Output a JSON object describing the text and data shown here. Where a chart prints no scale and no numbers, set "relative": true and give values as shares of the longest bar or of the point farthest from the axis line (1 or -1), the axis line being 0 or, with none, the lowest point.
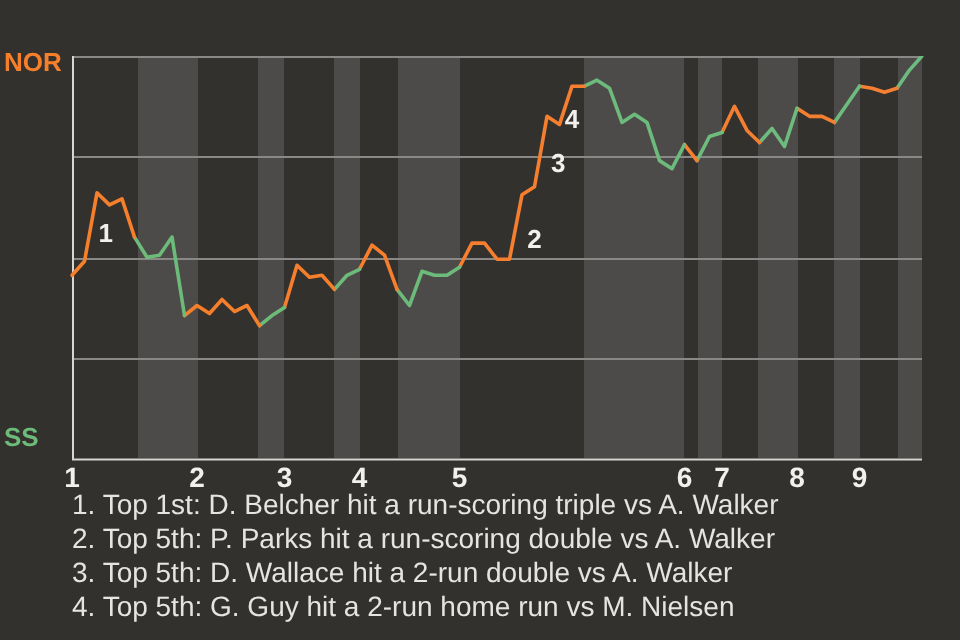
{
  "chart_data": {
    "type": "line",
    "relative": true,
    "legend": "left",
    "marker": "none",
    "categories": [
      "1",
      null,
      null,
      null,
      null,
      null,
      null,
      null,
      null,
      null,
      "2",
      null,
      null,
      null,
      null,
      null,
      null,
      "3",
      null,
      null,
      null,
      null,
      null,
      "4",
      null,
      null,
      null,
      null,
      null,
      null,
      null,
      "5",
      null,
      null,
      null,
      null,
      null,
      null,
      null,
      null,
      null,
      null,
      null,
      null,
      null,
      null,
      null,
      null,
      null,
      "6",
      null,
      null,
      "7",
      null,
      null,
      null,
      null,
      null,
      "8",
      null,
      null,
      null,
      null,
      "9",
      null,
      null,
      null,
      null,
      null
    ],
    "series": [
      {
        "name": "NOR",
        "color": "#f57f2a",
        "values": [
          0.455,
          0.49,
          0.66,
          0.63,
          0.645,
          0.55,
          null,
          null,
          null,
          null,
          null,
          null,
          null,
          null,
          null,
          null,
          null,
          null,
          null,
          null,
          null,
          null,
          null,
          null,
          null,
          null,
          null,
          null,
          null,
          null,
          null,
          null,
          null,
          null,
          null,
          null,
          null,
          null,
          null,
          null,
          null,
          null,
          null,
          null,
          null,
          null,
          null,
          null,
          null,
          null,
          null,
          null,
          null,
          null,
          null,
          null,
          null,
          null,
          null,
          null,
          null,
          null,
          null,
          null,
          null,
          null,
          null,
          null,
          null
        ]
      },
      {
        "name": "SS",
        "color": "#6dbb78",
        "values": [
          null,
          null,
          null,
          null,
          null,
          0.55,
          0.5,
          0.505,
          0.55,
          0.355,
          null,
          null,
          null,
          null,
          null,
          null,
          null,
          null,
          null,
          null,
          null,
          null,
          null,
          null,
          null,
          null,
          null,
          null,
          null,
          null,
          null,
          null,
          null,
          null,
          null,
          null,
          null,
          null,
          null,
          null,
          null,
          null,
          null,
          null,
          null,
          null,
          null,
          null,
          null,
          null,
          null,
          null,
          null,
          null,
          null,
          null,
          null,
          null,
          null,
          null,
          null,
          null,
          null,
          null,
          null,
          null,
          null,
          null,
          null
        ]
      },
      {
        "color": "#f57f2b",
        "values": [
          null,
          null,
          null,
          null,
          null,
          null,
          null,
          null,
          null,
          0.355,
          0.38,
          0.36,
          0.395,
          0.365,
          0.38,
          0.33,
          null,
          null,
          null,
          null,
          null,
          null,
          null,
          null,
          null,
          null,
          null,
          null,
          null,
          null,
          null,
          null,
          null,
          null,
          null,
          null,
          null,
          null,
          null,
          null,
          null,
          null,
          null,
          null,
          null,
          null,
          null,
          null,
          null,
          null,
          null,
          null,
          null,
          null,
          null,
          null,
          null,
          null,
          null,
          null,
          null,
          null,
          null,
          null,
          null,
          null,
          null,
          null,
          null
        ]
      },
      {
        "color": "#6dbb79",
        "values": [
          null,
          null,
          null,
          null,
          null,
          null,
          null,
          null,
          null,
          null,
          null,
          null,
          null,
          null,
          null,
          0.33,
          0.355,
          0.375,
          null,
          null,
          null,
          null,
          null,
          null,
          null,
          null,
          null,
          null,
          null,
          null,
          null,
          null,
          null,
          null,
          null,
          null,
          null,
          null,
          null,
          null,
          null,
          null,
          null,
          null,
          null,
          null,
          null,
          null,
          null,
          null,
          null,
          null,
          null,
          null,
          null,
          null,
          null,
          null,
          null,
          null,
          null,
          null,
          null,
          null,
          null,
          null,
          null,
          null,
          null
        ]
      },
      {
        "color": "#f57f2c",
        "values": [
          null,
          null,
          null,
          null,
          null,
          null,
          null,
          null,
          null,
          null,
          null,
          null,
          null,
          null,
          null,
          null,
          null,
          0.375,
          0.48,
          0.45,
          0.455,
          0.42,
          null,
          null,
          null,
          null,
          null,
          null,
          null,
          null,
          null,
          null,
          null,
          null,
          null,
          null,
          null,
          null,
          null,
          null,
          null,
          null,
          null,
          null,
          null,
          null,
          null,
          null,
          null,
          null,
          null,
          null,
          null,
          null,
          null,
          null,
          null,
          null,
          null,
          null,
          null,
          null,
          null,
          null,
          null,
          null,
          null,
          null,
          null
        ]
      },
      {
        "color": "#6dbb7a",
        "values": [
          null,
          null,
          null,
          null,
          null,
          null,
          null,
          null,
          null,
          null,
          null,
          null,
          null,
          null,
          null,
          null,
          null,
          null,
          null,
          null,
          null,
          0.42,
          0.455,
          0.47,
          null,
          null,
          null,
          null,
          null,
          null,
          null,
          null,
          null,
          null,
          null,
          null,
          null,
          null,
          null,
          null,
          null,
          null,
          null,
          null,
          null,
          null,
          null,
          null,
          null,
          null,
          null,
          null,
          null,
          null,
          null,
          null,
          null,
          null,
          null,
          null,
          null,
          null,
          null,
          null,
          null,
          null,
          null,
          null,
          null
        ]
      },
      {
        "color": "#f57f2d",
        "values": [
          null,
          null,
          null,
          null,
          null,
          null,
          null,
          null,
          null,
          null,
          null,
          null,
          null,
          null,
          null,
          null,
          null,
          null,
          null,
          null,
          null,
          null,
          null,
          0.47,
          0.53,
          0.505,
          0.42,
          null,
          null,
          null,
          null,
          null,
          null,
          null,
          null,
          null,
          null,
          null,
          null,
          null,
          null,
          null,
          null,
          null,
          null,
          null,
          null,
          null,
          null,
          null,
          null,
          null,
          null,
          null,
          null,
          null,
          null,
          null,
          null,
          null,
          null,
          null,
          null,
          null,
          null,
          null,
          null,
          null,
          null
        ]
      },
      {
        "color": "#6dbb7b",
        "values": [
          null,
          null,
          null,
          null,
          null,
          null,
          null,
          null,
          null,
          null,
          null,
          null,
          null,
          null,
          null,
          null,
          null,
          null,
          null,
          null,
          null,
          null,
          null,
          null,
          null,
          null,
          0.42,
          0.38,
          0.465,
          0.455,
          0.455,
          0.475,
          null,
          null,
          null,
          null,
          null,
          null,
          null,
          null,
          null,
          null,
          null,
          null,
          null,
          null,
          null,
          null,
          null,
          null,
          null,
          null,
          null,
          null,
          null,
          null,
          null,
          null,
          null,
          null,
          null,
          null,
          null,
          null,
          null,
          null,
          null,
          null,
          null
        ]
      },
      {
        "color": "#f57f2e",
        "values": [
          null,
          null,
          null,
          null,
          null,
          null,
          null,
          null,
          null,
          null,
          null,
          null,
          null,
          null,
          null,
          null,
          null,
          null,
          null,
          null,
          null,
          null,
          null,
          null,
          null,
          null,
          null,
          null,
          null,
          null,
          null,
          0.475,
          0.535,
          0.535,
          0.495,
          0.495,
          0.655,
          0.675,
          0.85,
          0.83,
          0.925,
          0.925,
          null,
          null,
          null,
          null,
          null,
          null,
          null,
          null,
          null,
          null,
          null,
          null,
          null,
          null,
          null,
          null,
          null,
          null,
          null,
          null,
          null,
          null,
          null,
          null,
          null,
          null,
          null
        ]
      },
      {
        "color": "#6dbb7c",
        "values": [
          null,
          null,
          null,
          null,
          null,
          null,
          null,
          null,
          null,
          null,
          null,
          null,
          null,
          null,
          null,
          null,
          null,
          null,
          null,
          null,
          null,
          null,
          null,
          null,
          null,
          null,
          null,
          null,
          null,
          null,
          null,
          null,
          null,
          null,
          null,
          null,
          null,
          null,
          null,
          null,
          null,
          0.925,
          0.94,
          0.92,
          0.835,
          0.855,
          0.835,
          0.74,
          0.72,
          0.78,
          null,
          null,
          null,
          null,
          null,
          null,
          null,
          null,
          null,
          null,
          null,
          null,
          null,
          null,
          null,
          null,
          null,
          null,
          null
        ]
      },
      {
        "color": "#f57f2f",
        "values": [
          null,
          null,
          null,
          null,
          null,
          null,
          null,
          null,
          null,
          null,
          null,
          null,
          null,
          null,
          null,
          null,
          null,
          null,
          null,
          null,
          null,
          null,
          null,
          null,
          null,
          null,
          null,
          null,
          null,
          null,
          null,
          null,
          null,
          null,
          null,
          null,
          null,
          null,
          null,
          null,
          null,
          null,
          null,
          null,
          null,
          null,
          null,
          null,
          null,
          0.78,
          0.74,
          null,
          null,
          null,
          null,
          null,
          null,
          null,
          null,
          null,
          null,
          null,
          null,
          null,
          null,
          null,
          null,
          null,
          null
        ]
      },
      {
        "color": "#6dbb7d",
        "values": [
          null,
          null,
          null,
          null,
          null,
          null,
          null,
          null,
          null,
          null,
          null,
          null,
          null,
          null,
          null,
          null,
          null,
          null,
          null,
          null,
          null,
          null,
          null,
          null,
          null,
          null,
          null,
          null,
          null,
          null,
          null,
          null,
          null,
          null,
          null,
          null,
          null,
          null,
          null,
          null,
          null,
          null,
          null,
          null,
          null,
          null,
          null,
          null,
          null,
          null,
          0.74,
          0.8,
          0.81,
          null,
          null,
          null,
          null,
          null,
          null,
          null,
          null,
          null,
          null,
          null,
          null,
          null,
          null,
          null,
          null
        ]
      },
      {
        "color": "#f57f30",
        "values": [
          null,
          null,
          null,
          null,
          null,
          null,
          null,
          null,
          null,
          null,
          null,
          null,
          null,
          null,
          null,
          null,
          null,
          null,
          null,
          null,
          null,
          null,
          null,
          null,
          null,
          null,
          null,
          null,
          null,
          null,
          null,
          null,
          null,
          null,
          null,
          null,
          null,
          null,
          null,
          null,
          null,
          null,
          null,
          null,
          null,
          null,
          null,
          null,
          null,
          null,
          null,
          null,
          0.81,
          0.875,
          0.815,
          0.785,
          null,
          null,
          null,
          null,
          null,
          null,
          null,
          null,
          null,
          null,
          null,
          null,
          null
        ]
      },
      {
        "color": "#6dbb7e",
        "values": [
          null,
          null,
          null,
          null,
          null,
          null,
          null,
          null,
          null,
          null,
          null,
          null,
          null,
          null,
          null,
          null,
          null,
          null,
          null,
          null,
          null,
          null,
          null,
          null,
          null,
          null,
          null,
          null,
          null,
          null,
          null,
          null,
          null,
          null,
          null,
          null,
          null,
          null,
          null,
          null,
          null,
          null,
          null,
          null,
          null,
          null,
          null,
          null,
          null,
          null,
          null,
          null,
          null,
          null,
          null,
          0.785,
          0.82,
          0.775,
          0.87,
          null,
          null,
          null,
          null,
          null,
          null,
          null,
          null,
          null,
          null
        ]
      },
      {
        "color": "#f57f31",
        "values": [
          null,
          null,
          null,
          null,
          null,
          null,
          null,
          null,
          null,
          null,
          null,
          null,
          null,
          null,
          null,
          null,
          null,
          null,
          null,
          null,
          null,
          null,
          null,
          null,
          null,
          null,
          null,
          null,
          null,
          null,
          null,
          null,
          null,
          null,
          null,
          null,
          null,
          null,
          null,
          null,
          null,
          null,
          null,
          null,
          null,
          null,
          null,
          null,
          null,
          null,
          null,
          null,
          null,
          null,
          null,
          null,
          null,
          null,
          0.87,
          0.85,
          0.85,
          0.835,
          null,
          null,
          null,
          null,
          null,
          null,
          null
        ]
      },
      {
        "color": "#6dbb7f",
        "values": [
          null,
          null,
          null,
          null,
          null,
          null,
          null,
          null,
          null,
          null,
          null,
          null,
          null,
          null,
          null,
          null,
          null,
          null,
          null,
          null,
          null,
          null,
          null,
          null,
          null,
          null,
          null,
          null,
          null,
          null,
          null,
          null,
          null,
          null,
          null,
          null,
          null,
          null,
          null,
          null,
          null,
          null,
          null,
          null,
          null,
          null,
          null,
          null,
          null,
          null,
          null,
          null,
          null,
          null,
          null,
          null,
          null,
          null,
          null,
          null,
          null,
          0.835,
          0.88,
          0.925,
          null,
          null,
          null,
          null,
          null
        ]
      },
      {
        "color": "#f57f32",
        "values": [
          null,
          null,
          null,
          null,
          null,
          null,
          null,
          null,
          null,
          null,
          null,
          null,
          null,
          null,
          null,
          null,
          null,
          null,
          null,
          null,
          null,
          null,
          null,
          null,
          null,
          null,
          null,
          null,
          null,
          null,
          null,
          null,
          null,
          null,
          null,
          null,
          null,
          null,
          null,
          null,
          null,
          null,
          null,
          null,
          null,
          null,
          null,
          null,
          null,
          null,
          null,
          null,
          null,
          null,
          null,
          null,
          null,
          null,
          null,
          null,
          null,
          null,
          null,
          0.925,
          0.92,
          0.91,
          0.92,
          null,
          null
        ]
      },
      {
        "color": "#6dbb80",
        "values": [
          null,
          null,
          null,
          null,
          null,
          null,
          null,
          null,
          null,
          null,
          null,
          null,
          null,
          null,
          null,
          null,
          null,
          null,
          null,
          null,
          null,
          null,
          null,
          null,
          null,
          null,
          null,
          null,
          null,
          null,
          null,
          null,
          null,
          null,
          null,
          null,
          null,
          null,
          null,
          null,
          null,
          null,
          null,
          null,
          null,
          null,
          null,
          null,
          null,
          null,
          null,
          null,
          null,
          null,
          null,
          null,
          null,
          null,
          null,
          null,
          null,
          null,
          null,
          null,
          null,
          null,
          0.92,
          0.965,
          1
        ]
      }
    ],
    "ref_lines": [
      {
        "axis": "y",
        "value": 0.25,
        "color": "#8a8886"
      },
      {
        "axis": "y",
        "value": 0.5,
        "color": "#8a8886"
      },
      {
        "axis": "y",
        "value": 0.75,
        "color": "#8a8886"
      },
      {
        "axis": "y",
        "value": 1,
        "color": "#8a8886"
      }
    ],
    "annotations": [
      "1",
      "2",
      "3",
      "4",
      "1. Top 1st: D. Belcher hit a run-scoring triple vs A. Walker",
      "2. Top 5th: P. Parks hit a run-scoring double vs A. Walker",
      "3. Top 5th: D. Wallace hit a 2-run double vs A. Walker",
      "4. Top 5th: G. Guy hit a 2-run home run vs M. Nielsen"
    ]
  }
}
